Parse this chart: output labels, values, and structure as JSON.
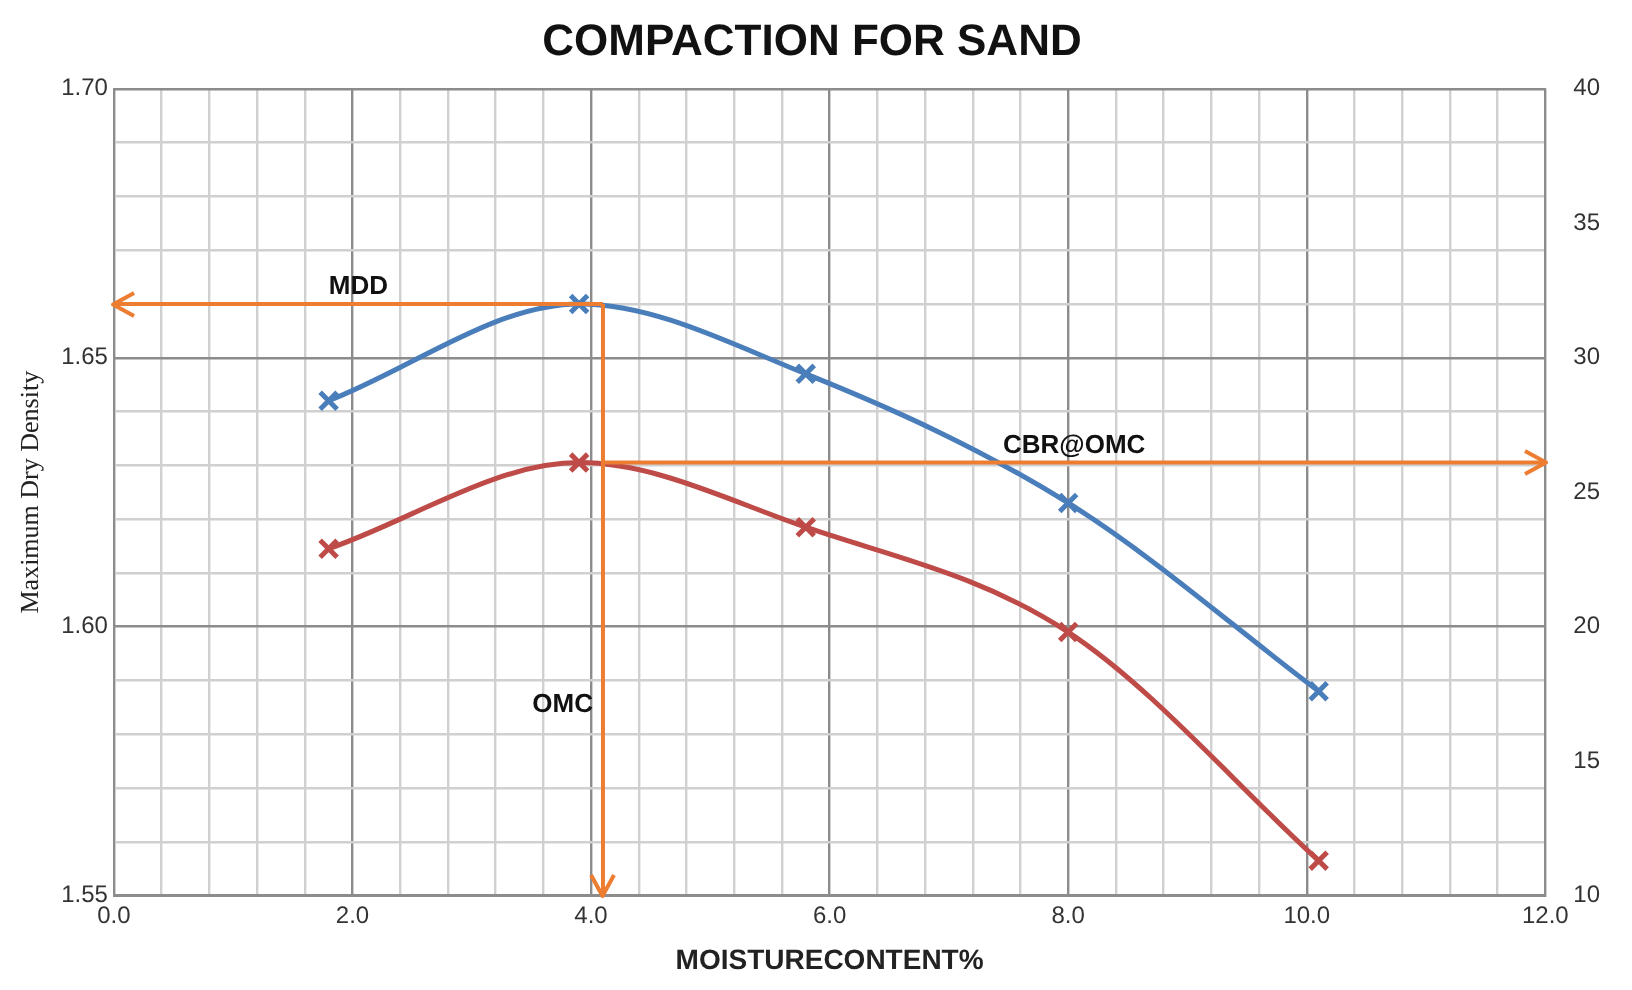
{
  "chart_data": {
    "type": "line",
    "title": "COMPACTION FOR SAND",
    "xlabel": "MOISTURECONTENT%",
    "ylabel": "Maximum Dry Density",
    "x": [
      1.8,
      3.9,
      5.8,
      8.0,
      10.1
    ],
    "series": [
      {
        "color": "#4a7ebb",
        "values": [
          1.642,
          1.66,
          1.647,
          1.623,
          1.588
        ]
      },
      {
        "color": "#be4b48",
        "axis": "y2",
        "values": [
          22.9,
          26.1,
          23.7,
          19.8,
          11.3
        ]
      }
    ],
    "xlim": [
      0,
      12
    ],
    "xticks": [
      {
        "value": 0,
        "label": "0.0"
      },
      {
        "value": 0.4,
        "label": null
      },
      {
        "value": 0.8,
        "label": null
      },
      {
        "value": 1.2,
        "label": null
      },
      {
        "value": 1.6,
        "label": null
      },
      {
        "value": 2,
        "label": "2.0"
      },
      {
        "value": 2.4,
        "label": null
      },
      {
        "value": 2.8,
        "label": null
      },
      {
        "value": 3.2,
        "label": null
      },
      {
        "value": 3.6,
        "label": null
      },
      {
        "value": 4,
        "label": "4.0"
      },
      {
        "value": 4.4,
        "label": null
      },
      {
        "value": 4.8,
        "label": null
      },
      {
        "value": 5.2,
        "label": null
      },
      {
        "value": 5.6,
        "label": null
      },
      {
        "value": 6,
        "label": "6.0"
      },
      {
        "value": 6.4,
        "label": null
      },
      {
        "value": 6.8,
        "label": null
      },
      {
        "value": 7.2,
        "label": null
      },
      {
        "value": 7.6,
        "label": null
      },
      {
        "value": 8,
        "label": "8.0"
      },
      {
        "value": 8.4,
        "label": null
      },
      {
        "value": 8.8,
        "label": null
      },
      {
        "value": 9.2,
        "label": null
      },
      {
        "value": 9.6,
        "label": null
      },
      {
        "value": 10,
        "label": "10.0"
      },
      {
        "value": 10.4,
        "label": null
      },
      {
        "value": 10.8,
        "label": null
      },
      {
        "value": 11.2,
        "label": null
      },
      {
        "value": 11.6,
        "label": null
      },
      {
        "value": 12,
        "label": "12.0"
      }
    ],
    "ylim": [
      1.55,
      1.7
    ],
    "yticks": [
      {
        "value": 1.55,
        "label": "1.55"
      },
      {
        "value": 1.56,
        "label": null
      },
      {
        "value": 1.57,
        "label": null
      },
      {
        "value": 1.58,
        "label": null
      },
      {
        "value": 1.59,
        "label": null
      },
      {
        "value": 1.6,
        "label": "1.60"
      },
      {
        "value": 1.61,
        "label": null
      },
      {
        "value": 1.62,
        "label": null
      },
      {
        "value": 1.63,
        "label": null
      },
      {
        "value": 1.64,
        "label": null
      },
      {
        "value": 1.65,
        "label": "1.65"
      },
      {
        "value": 1.66,
        "label": null
      },
      {
        "value": 1.67,
        "label": null
      },
      {
        "value": 1.68,
        "label": null
      },
      {
        "value": 1.69,
        "label": null
      },
      {
        "value": 1.7,
        "label": "1.70"
      }
    ],
    "y2lim": [
      10,
      40
    ],
    "y2ticks": [
      10,
      15,
      20,
      25,
      30,
      35,
      40
    ],
    "ref_lines": [
      {
        "axis": "y",
        "value": 1.66,
        "label": "MDD",
        "color": "#ed7d31"
      },
      {
        "axis": "x",
        "value": 4.1,
        "label": "OMC",
        "color": "#ed7d31"
      },
      {
        "axis": "y2",
        "value": 26.1,
        "label": "CBR@OMC",
        "color": "#ed7d31"
      }
    ],
    "grid": true,
    "legend": false,
    "marker": "cross",
    "line_style": "solid"
  }
}
